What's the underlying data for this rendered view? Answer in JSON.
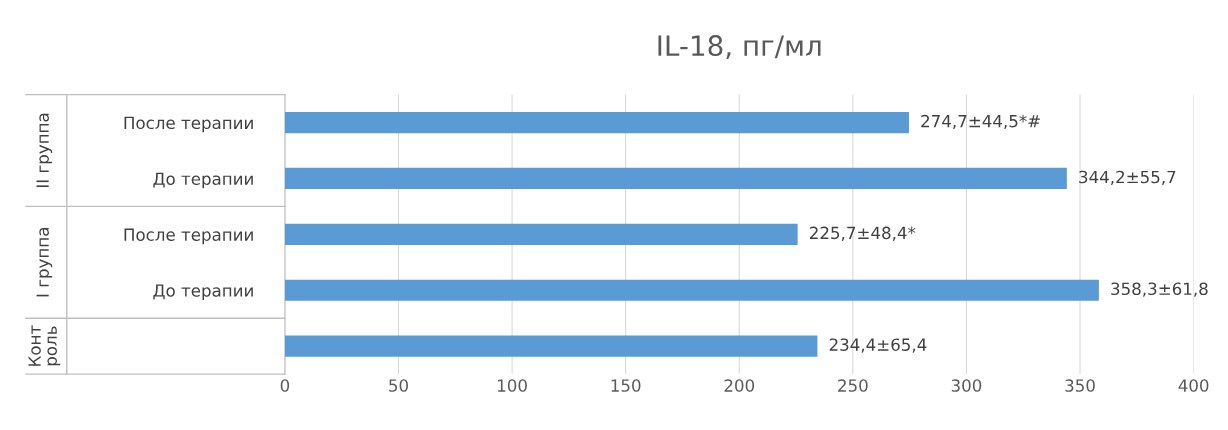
{
  "chart_data": {
    "type": "bar",
    "orientation": "horizontal",
    "title": "IL-18, пг/мл",
    "categories": [
      "После терапии",
      "До терапии",
      "После терапии",
      "До терапии",
      null
    ],
    "values": [
      274.7,
      344.2,
      225.7,
      358.3,
      234.4
    ],
    "value_labels": [
      "274,7±44,5*#",
      "344,2±55,7",
      "225,7±48,4*",
      "358,3±61,8",
      "234,4±65,4"
    ],
    "color": "#5b9bd5",
    "xlim": [
      0,
      400
    ],
    "xticks": [
      0,
      50,
      100,
      150,
      200,
      250,
      300,
      350,
      400
    ],
    "grid": "x",
    "annotations": [
      "II группа",
      "I группа",
      "Конт\nроль"
    ]
  }
}
